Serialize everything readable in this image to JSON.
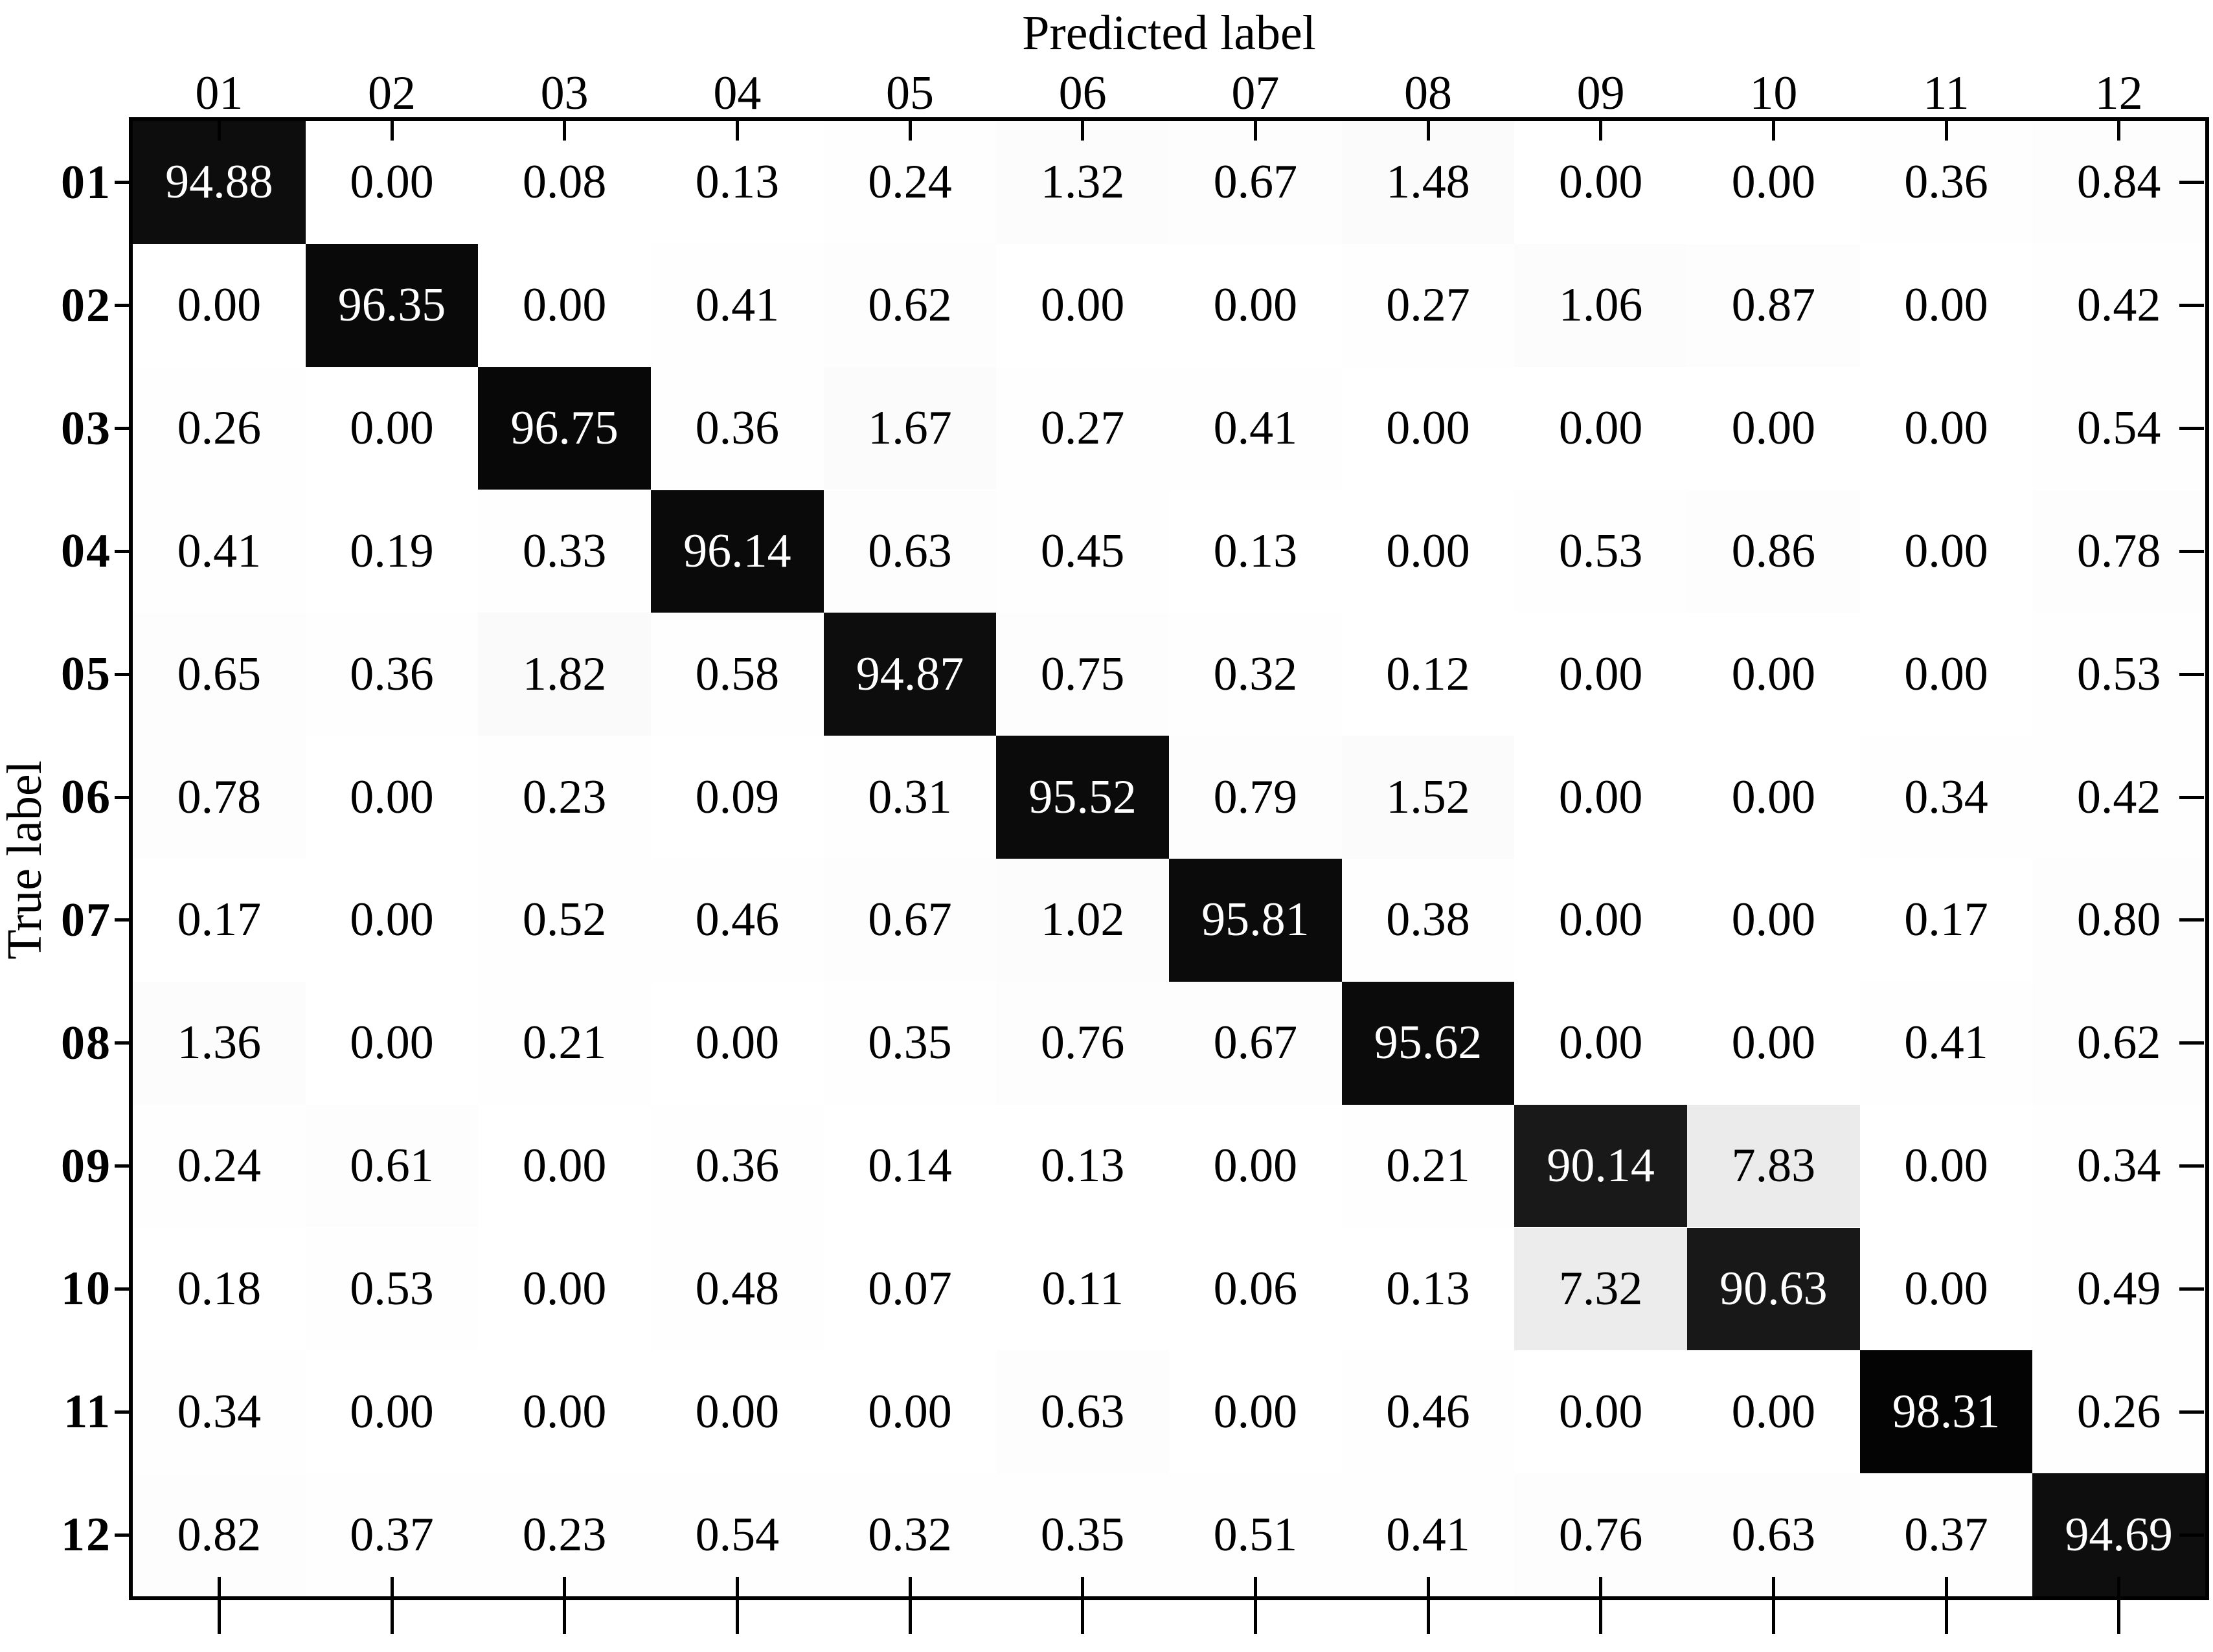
{
  "figure": {
    "xlabel": "Predicted label",
    "ylabel": "True label"
  },
  "chart_data": {
    "type": "heatmap",
    "title": "",
    "xlabel": "Predicted label",
    "ylabel": "True label",
    "x_categories": [
      "01",
      "02",
      "03",
      "04",
      "05",
      "06",
      "07",
      "08",
      "09",
      "10",
      "11",
      "12"
    ],
    "y_categories": [
      "01",
      "02",
      "03",
      "04",
      "05",
      "06",
      "07",
      "08",
      "09",
      "10",
      "11",
      "12"
    ],
    "value_range": [
      0,
      100
    ],
    "colormap": "grayscale 0=white 100=black",
    "legend": "none",
    "grid": false,
    "matrix": [
      [
        94.88,
        0.0,
        0.08,
        0.13,
        0.24,
        1.32,
        0.67,
        1.48,
        0.0,
        0.0,
        0.36,
        0.84
      ],
      [
        0.0,
        96.35,
        0.0,
        0.41,
        0.62,
        0.0,
        0.0,
        0.27,
        1.06,
        0.87,
        0.0,
        0.42
      ],
      [
        0.26,
        0.0,
        96.75,
        0.36,
        1.67,
        0.27,
        0.41,
        0.0,
        0.0,
        0.0,
        0.0,
        0.54
      ],
      [
        0.41,
        0.19,
        0.33,
        96.14,
        0.63,
        0.45,
        0.13,
        0.0,
        0.53,
        0.86,
        0.0,
        0.78
      ],
      [
        0.65,
        0.36,
        1.82,
        0.58,
        94.87,
        0.75,
        0.32,
        0.12,
        0.0,
        0.0,
        0.0,
        0.53
      ],
      [
        0.78,
        0.0,
        0.23,
        0.09,
        0.31,
        95.52,
        0.79,
        1.52,
        0.0,
        0.0,
        0.34,
        0.42
      ],
      [
        0.17,
        0.0,
        0.52,
        0.46,
        0.67,
        1.02,
        95.81,
        0.38,
        0.0,
        0.0,
        0.17,
        0.8
      ],
      [
        1.36,
        0.0,
        0.21,
        0.0,
        0.35,
        0.76,
        0.67,
        95.62,
        0.0,
        0.0,
        0.41,
        0.62
      ],
      [
        0.24,
        0.61,
        0.0,
        0.36,
        0.14,
        0.13,
        0.0,
        0.21,
        90.14,
        7.83,
        0.0,
        0.34
      ],
      [
        0.18,
        0.53,
        0.0,
        0.48,
        0.07,
        0.11,
        0.06,
        0.13,
        7.32,
        90.63,
        0.0,
        0.49
      ],
      [
        0.34,
        0.0,
        0.0,
        0.0,
        0.0,
        0.63,
        0.0,
        0.46,
        0.0,
        0.0,
        98.31,
        0.26
      ],
      [
        0.82,
        0.37,
        0.23,
        0.54,
        0.32,
        0.35,
        0.51,
        0.41,
        0.76,
        0.63,
        0.37,
        94.69
      ]
    ]
  }
}
